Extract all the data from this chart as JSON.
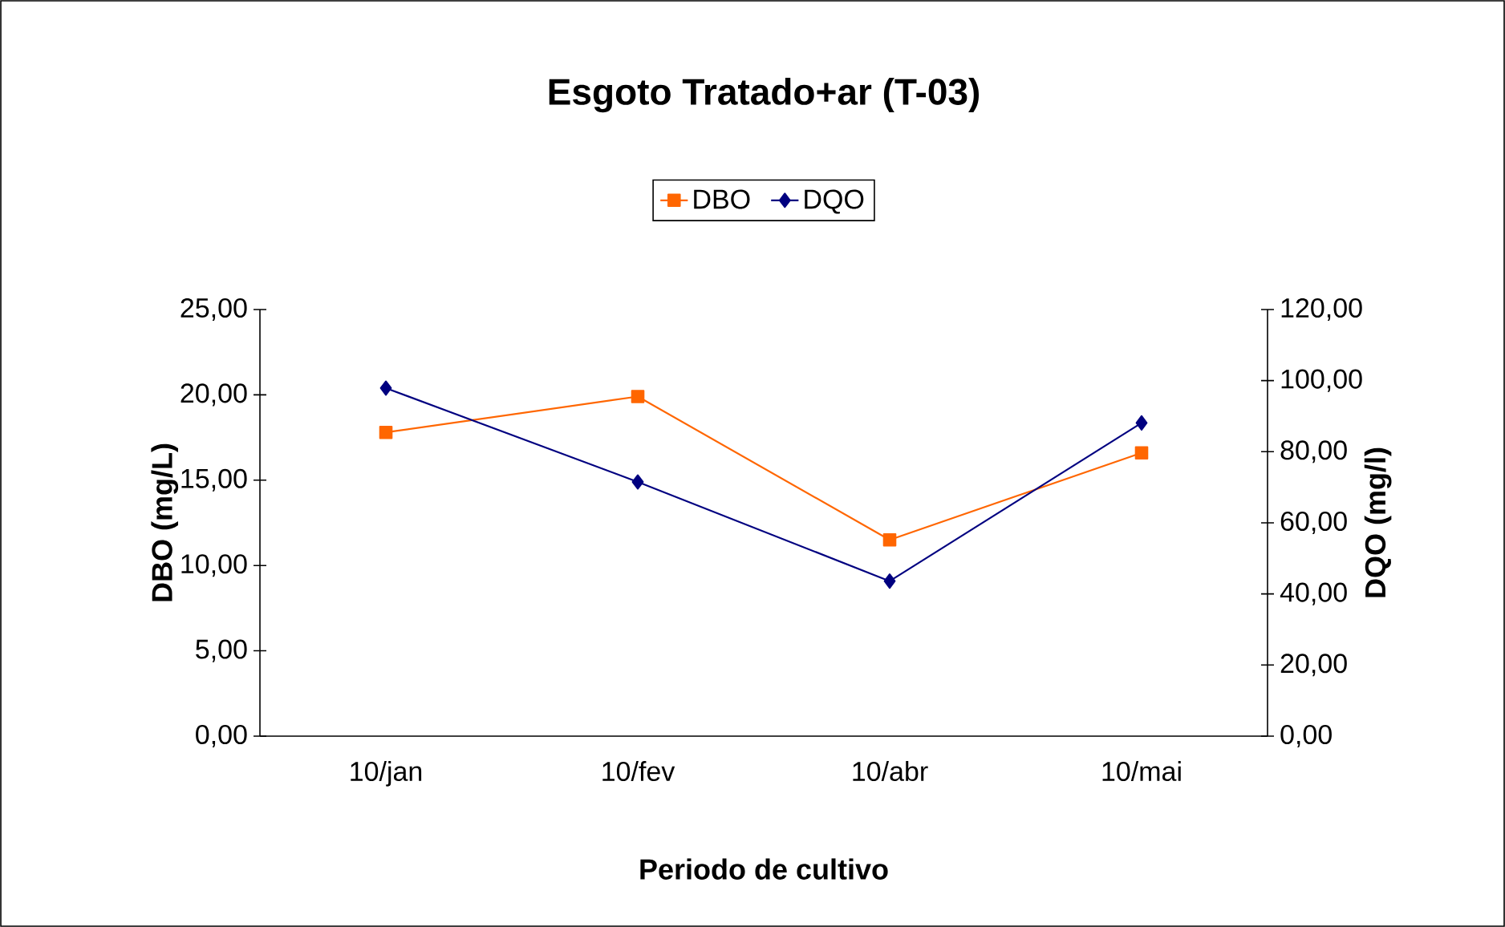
{
  "chart_data": {
    "type": "line",
    "title": "Esgoto Tratado+ar (T-03)",
    "xlabel": "Periodo de cultivo",
    "ylabel": "DBO (mg/L)",
    "y2label": "DQO (mg/l)",
    "categories": [
      "10/jan",
      "10/fev",
      "10/abr",
      "10/mai"
    ],
    "series": [
      {
        "name": "DBO",
        "color": "#ff6600",
        "marker": "square",
        "values": [
          17.8,
          19.9,
          11.5,
          16.6
        ]
      },
      {
        "name": "DQO",
        "color": "#000080",
        "marker": "diamond",
        "axis": "y2",
        "values": [
          97.9,
          71.5,
          43.6,
          88.1
        ]
      }
    ],
    "ylim": [
      0,
      25
    ],
    "yticks": [
      {
        "value": 0,
        "label": "0,00"
      },
      {
        "value": 5,
        "label": "5,00"
      },
      {
        "value": 10,
        "label": "10,00"
      },
      {
        "value": 15,
        "label": "15,00"
      },
      {
        "value": 20,
        "label": "20,00"
      },
      {
        "value": 25,
        "label": "25,00"
      }
    ],
    "y2lim": [
      0,
      120
    ],
    "y2ticks": [
      {
        "value": 0,
        "label": "0,00"
      },
      {
        "value": 20,
        "label": "20,00"
      },
      {
        "value": 40,
        "label": "40,00"
      },
      {
        "value": 60,
        "label": "60,00"
      },
      {
        "value": 80,
        "label": "80,00"
      },
      {
        "value": 100,
        "label": "100,00"
      },
      {
        "value": 120,
        "label": "120,00"
      }
    ],
    "legend": "top",
    "grid": false
  }
}
